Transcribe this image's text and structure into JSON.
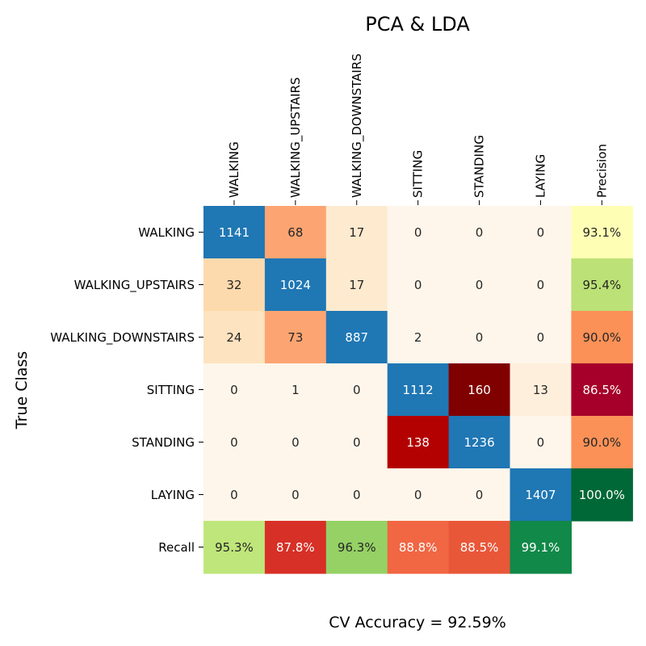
{
  "chart_data": {
    "type": "heatmap",
    "title": "PCA & LDA",
    "ylabel": "True Class",
    "footer": "CV Accuracy = 92.59%",
    "columns": [
      "WALKING",
      "WALKING_UPSTAIRS",
      "WALKING_DOWNSTAIRS",
      "SITTING",
      "STANDING",
      "LAYING",
      "Precision"
    ],
    "rows": [
      "WALKING",
      "WALKING_UPSTAIRS",
      "WALKING_DOWNSTAIRS",
      "SITTING",
      "STANDING",
      "LAYING",
      "Recall"
    ],
    "matrix": [
      [
        1141,
        68,
        17,
        0,
        0,
        0
      ],
      [
        32,
        1024,
        17,
        0,
        0,
        0
      ],
      [
        24,
        73,
        887,
        2,
        0,
        0
      ],
      [
        0,
        1,
        0,
        1112,
        160,
        13
      ],
      [
        0,
        0,
        0,
        138,
        1236,
        0
      ],
      [
        0,
        0,
        0,
        0,
        0,
        1407
      ]
    ],
    "precision": [
      "93.1%",
      "95.4%",
      "90.0%",
      "86.5%",
      "90.0%",
      "100.0%"
    ],
    "recall": [
      "95.3%",
      "87.8%",
      "96.3%",
      "88.8%",
      "88.5%",
      "99.1%"
    ],
    "colors": {
      "diagonal": "#1f77b4",
      "matrix": [
        [
          "#1f77b4",
          "#fca572",
          "#feeacf",
          "#fef6eb",
          "#fef6eb",
          "#fef6eb"
        ],
        [
          "#fddaad",
          "#1f77b4",
          "#feeacf",
          "#fef6eb",
          "#fef6eb",
          "#fef6eb"
        ],
        [
          "#fde3bf",
          "#fca572",
          "#1f77b4",
          "#fef6eb",
          "#fef6eb",
          "#fef6eb"
        ],
        [
          "#fef6eb",
          "#fef6eb",
          "#fef6eb",
          "#1f77b4",
          "#800000",
          "#feefdc"
        ],
        [
          "#fef6eb",
          "#fef6eb",
          "#fef6eb",
          "#b30000",
          "#1f77b4",
          "#fef6eb"
        ],
        [
          "#fef6eb",
          "#fef6eb",
          "#fef6eb",
          "#fef6eb",
          "#fef6eb",
          "#1f77b4"
        ]
      ],
      "precision": [
        "#feffb4",
        "#bce176",
        "#fb9157",
        "#a6002a",
        "#fb9157",
        "#006837"
      ],
      "recall": [
        "#bfe67a",
        "#d73027",
        "#95d165",
        "#f16643",
        "#e95739",
        "#118948"
      ],
      "text_dark": "#262626",
      "text_light": "#ffffff"
    },
    "light_text": {
      "matrix": [
        [
          true,
          false,
          false,
          false,
          false,
          false
        ],
        [
          false,
          true,
          false,
          false,
          false,
          false
        ],
        [
          false,
          false,
          true,
          false,
          false,
          false
        ],
        [
          false,
          false,
          false,
          true,
          true,
          false
        ],
        [
          false,
          false,
          false,
          true,
          true,
          false
        ],
        [
          false,
          false,
          false,
          false,
          false,
          true
        ]
      ],
      "precision": [
        false,
        false,
        false,
        true,
        false,
        true
      ],
      "recall": [
        false,
        true,
        false,
        true,
        true,
        true
      ]
    }
  }
}
